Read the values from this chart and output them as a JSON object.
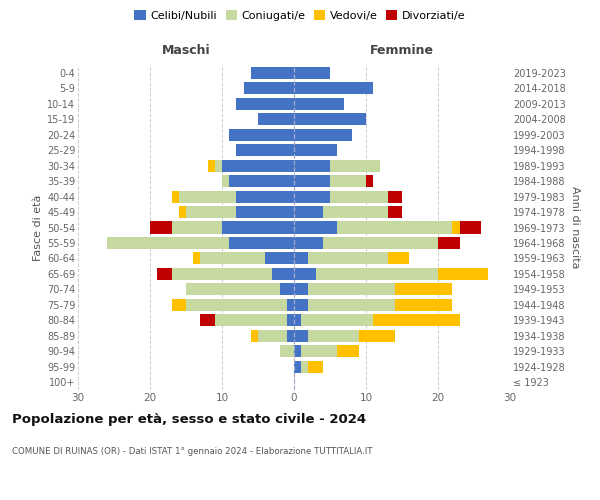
{
  "age_groups": [
    "100+",
    "95-99",
    "90-94",
    "85-89",
    "80-84",
    "75-79",
    "70-74",
    "65-69",
    "60-64",
    "55-59",
    "50-54",
    "45-49",
    "40-44",
    "35-39",
    "30-34",
    "25-29",
    "20-24",
    "15-19",
    "10-14",
    "5-9",
    "0-4"
  ],
  "birth_years": [
    "≤ 1923",
    "1924-1928",
    "1929-1933",
    "1934-1938",
    "1939-1943",
    "1944-1948",
    "1949-1953",
    "1954-1958",
    "1959-1963",
    "1964-1968",
    "1969-1973",
    "1974-1978",
    "1979-1983",
    "1984-1988",
    "1989-1993",
    "1994-1998",
    "1999-2003",
    "2004-2008",
    "2009-2013",
    "2014-2018",
    "2019-2023"
  ],
  "male": {
    "celibi": [
      0,
      0,
      0,
      1,
      1,
      1,
      2,
      3,
      4,
      9,
      10,
      8,
      8,
      9,
      10,
      8,
      9,
      5,
      8,
      7,
      6
    ],
    "coniugati": [
      0,
      0,
      2,
      4,
      10,
      14,
      13,
      14,
      9,
      17,
      7,
      7,
      8,
      1,
      1,
      0,
      0,
      0,
      0,
      0,
      0
    ],
    "vedovi": [
      0,
      0,
      0,
      1,
      0,
      2,
      0,
      0,
      1,
      0,
      0,
      1,
      1,
      0,
      1,
      0,
      0,
      0,
      0,
      0,
      0
    ],
    "divorziati": [
      0,
      0,
      0,
      0,
      2,
      0,
      0,
      2,
      0,
      0,
      3,
      0,
      0,
      0,
      0,
      0,
      0,
      0,
      0,
      0,
      0
    ]
  },
  "female": {
    "nubili": [
      0,
      1,
      1,
      2,
      1,
      2,
      2,
      3,
      2,
      4,
      6,
      4,
      5,
      5,
      5,
      6,
      8,
      10,
      7,
      11,
      5
    ],
    "coniugate": [
      0,
      1,
      5,
      7,
      10,
      12,
      12,
      17,
      11,
      16,
      16,
      9,
      8,
      5,
      7,
      0,
      0,
      0,
      0,
      0,
      0
    ],
    "vedove": [
      0,
      2,
      3,
      5,
      12,
      8,
      8,
      7,
      3,
      0,
      1,
      0,
      0,
      0,
      0,
      0,
      0,
      0,
      0,
      0,
      0
    ],
    "divorziate": [
      0,
      0,
      0,
      0,
      0,
      0,
      0,
      0,
      0,
      3,
      3,
      2,
      2,
      1,
      0,
      0,
      0,
      0,
      0,
      0,
      0
    ]
  },
  "colors": {
    "celibi": "#4472c4",
    "coniugati": "#c5d9a0",
    "vedovi": "#ffc000",
    "divorziati": "#c00000"
  },
  "title": "Popolazione per età, sesso e stato civile - 2024",
  "subtitle": "COMUNE DI RUINAS (OR) - Dati ISTAT 1° gennaio 2024 - Elaborazione TUTTITALIA.IT",
  "xlabel_left": "Maschi",
  "xlabel_right": "Femmine",
  "ylabel_left": "Fasce di età",
  "ylabel_right": "Anni di nascita",
  "xlim": 30,
  "bg_color": "#ffffff",
  "grid_color": "#cccccc",
  "legend_labels": [
    "Celibi/Nubili",
    "Coniugati/e",
    "Vedovi/e",
    "Divorziati/e"
  ]
}
